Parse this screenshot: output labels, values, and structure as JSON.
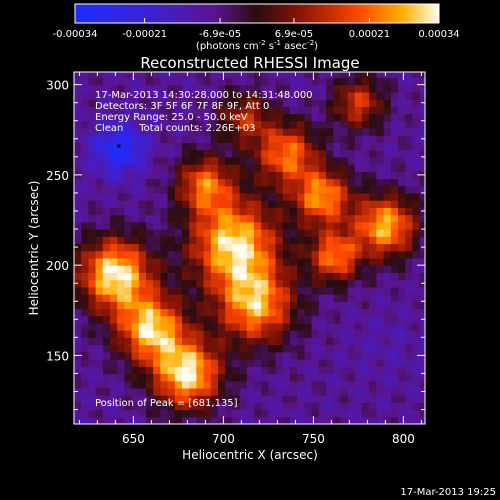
{
  "chart_data": {
    "type": "heatmap",
    "title": "Reconstructed RHESSI Image",
    "xlabel": "Heliocentric X (arcsec)",
    "ylabel": "Heliocentric Y (arcsec)",
    "xlim": [
      617,
      812
    ],
    "ylim": [
      112,
      307
    ],
    "x_ticks": [
      650,
      700,
      750,
      800
    ],
    "y_ticks": [
      150,
      200,
      250,
      300
    ],
    "colorbar": {
      "ticks": [
        "-0.00034",
        "-0.00021",
        "-6.9e-05",
        "6.9e-05",
        "0.00021",
        "0.00034"
      ],
      "tick_values": [
        -0.00034,
        -0.00021,
        -6.9e-05,
        6.9e-05,
        0.00021,
        0.00034
      ],
      "range": [
        -0.00034,
        0.00034
      ],
      "label_parts": [
        "(photons cm",
        "-2",
        " s",
        "-1",
        " asec",
        "-2",
        ")"
      ]
    },
    "info_lines": [
      "17-Mar-2013 14:30:28.000 to 14:31:48.000",
      "Detectors: 3F 5F 6F 7F 8F 9F, Att 0",
      "Energy Range: 25.0 - 50.0 keV",
      "Clean     Total counts: 2.26E+03"
    ],
    "peak_label": "Position of Peak = [681,135]",
    "peak_x": 681,
    "peak_y": 135,
    "blob_centers": [
      {
        "x": 640,
        "y": 195,
        "value": 0.00034,
        "spread": 14
      },
      {
        "x": 660,
        "y": 165,
        "value": 0.0003,
        "spread": 13
      },
      {
        "x": 680,
        "y": 140,
        "value": 0.00033,
        "spread": 13
      },
      {
        "x": 706,
        "y": 212,
        "value": 0.00032,
        "spread": 17
      },
      {
        "x": 718,
        "y": 178,
        "value": 0.00026,
        "spread": 15
      },
      {
        "x": 690,
        "y": 245,
        "value": 0.0002,
        "spread": 11
      },
      {
        "x": 735,
        "y": 262,
        "value": 0.00022,
        "spread": 12
      },
      {
        "x": 755,
        "y": 238,
        "value": 0.00025,
        "spread": 11
      },
      {
        "x": 790,
        "y": 222,
        "value": 0.00028,
        "spread": 12
      },
      {
        "x": 762,
        "y": 205,
        "value": 0.00022,
        "spread": 10
      },
      {
        "x": 712,
        "y": 282,
        "value": 0.00012,
        "spread": 10
      },
      {
        "x": 775,
        "y": 290,
        "value": 0.00015,
        "spread": 10
      },
      {
        "x": 642,
        "y": 265,
        "value": -0.00032,
        "spread": 10
      },
      {
        "x": 790,
        "y": 155,
        "value": -0.00012,
        "spread": 14
      },
      {
        "x": 745,
        "y": 130,
        "value": -9e-05,
        "spread": 12
      }
    ]
  },
  "footer_date": "17-Mar-2013 19:25"
}
